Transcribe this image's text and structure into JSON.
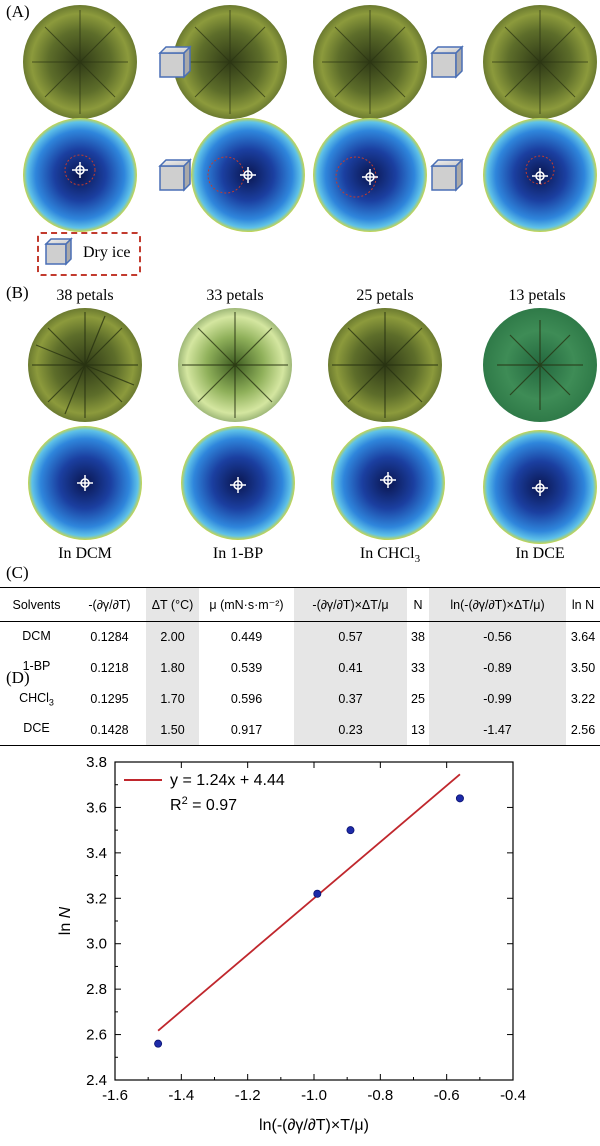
{
  "panels": {
    "a": "(A)",
    "b": "(B)",
    "c": "(C)",
    "d": "(D)"
  },
  "legend": {
    "label": "Dry ice"
  },
  "petal_counts": [
    "38 petals",
    "33 petals",
    "25 petals",
    "13 petals"
  ],
  "solvent_labels": [
    {
      "pre": "In DCM",
      "sub": ""
    },
    {
      "pre": "In 1-BP",
      "sub": ""
    },
    {
      "pre": "In CHCl",
      "sub": "3"
    },
    {
      "pre": "In DCE",
      "sub": ""
    }
  ],
  "colors": {
    "petal_dark": "#3d4a1f",
    "petal_light": "#b9c96a",
    "thermal_dark": "#0c1d5c",
    "thermal_mid": "#2d7fd6",
    "thermal_edge": "#d6d23a",
    "dash_red": "#c23b2e",
    "fit_line": "#c0272d",
    "point": "#1d2aa8"
  },
  "table": {
    "headers": [
      "Solvents",
      "-(∂γ/∂T)",
      "ΔT (°C)",
      "μ (mN·s·m⁻²)",
      "-(∂γ/∂T)×ΔT/μ",
      "N",
      "ln(-(∂γ/∂T)×ΔT/μ)",
      "ln N"
    ],
    "rows": [
      {
        "solvent": "DCM",
        "sub": "",
        "dgdt": "0.1284",
        "dt": "2.00",
        "mu": "0.449",
        "prod": "0.57",
        "n": "38",
        "lnprod": "-0.56",
        "lnn": "3.64"
      },
      {
        "solvent": "1-BP",
        "sub": "",
        "dgdt": "0.1218",
        "dt": "1.80",
        "mu": "0.539",
        "prod": "0.41",
        "n": "33",
        "lnprod": "-0.89",
        "lnn": "3.50"
      },
      {
        "solvent": "CHCl",
        "sub": "3",
        "dgdt": "0.1295",
        "dt": "1.70",
        "mu": "0.596",
        "prod": "0.37",
        "n": "25",
        "lnprod": "-0.99",
        "lnn": "3.22"
      },
      {
        "solvent": "DCE",
        "sub": "",
        "dgdt": "0.1428",
        "dt": "1.50",
        "mu": "0.917",
        "prod": "0.23",
        "n": "13",
        "lnprod": "-1.47",
        "lnn": "2.56"
      }
    ]
  },
  "chart_data": {
    "type": "scatter",
    "title": "",
    "xlabel": "ln(-(∂γ/∂T)×T/μ)",
    "ylabel_pre": "ln ",
    "ylabel_var": "N",
    "xlim": [
      -1.6,
      -0.4
    ],
    "ylim": [
      2.4,
      3.8
    ],
    "xticks": [
      "-1.6",
      "-1.4",
      "-1.2",
      "-1.0",
      "-0.8",
      "-0.6",
      "-0.4"
    ],
    "yticks": [
      "2.4",
      "2.6",
      "2.8",
      "3.0",
      "3.2",
      "3.4",
      "3.6",
      "3.8"
    ],
    "x": [
      -1.47,
      -0.99,
      -0.89,
      -0.56
    ],
    "y": [
      2.56,
      3.22,
      3.5,
      3.64
    ],
    "fit": {
      "slope": 1.24,
      "intercept": 4.44,
      "x_range": [
        -1.47,
        -0.56
      ],
      "equation": "y = 1.24x + 4.44",
      "r2_pre": "R",
      "r2_exp": "2",
      "r2_post": " = 0.97"
    }
  }
}
